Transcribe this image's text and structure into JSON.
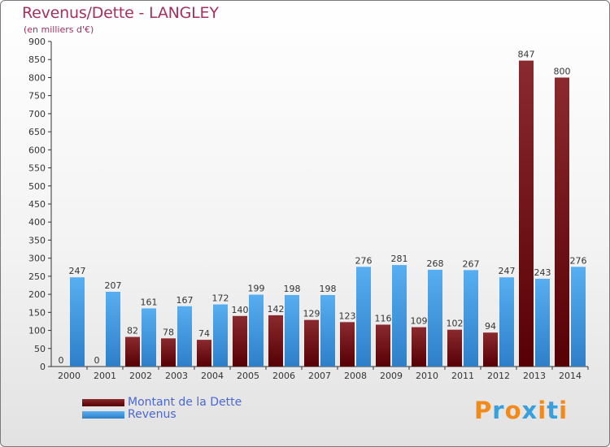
{
  "title": "Revenus/Dette - LANGLEY",
  "subtitle": "(en milliers d'€)",
  "legend": [
    {
      "label": "Montant de la Dette",
      "color": "#6b0f12"
    },
    {
      "label": "Revenus",
      "color": "#3f95de"
    }
  ],
  "logo": {
    "text": "Proxiti",
    "letters": [
      "P",
      "r",
      "o",
      "x",
      "i",
      "t",
      "i"
    ],
    "colors": [
      "#f08a1c",
      "#3aa0dc",
      "#f08a1c",
      "#3aa0dc",
      "#f08a1c",
      "#3aa0dc",
      "#f08a1c"
    ]
  },
  "chart_data": {
    "type": "bar",
    "categories": [
      "2000",
      "2001",
      "2002",
      "2003",
      "2004",
      "2005",
      "2006",
      "2007",
      "2008",
      "2009",
      "2010",
      "2011",
      "2012",
      "2013",
      "2014"
    ],
    "series": [
      {
        "name": "Montant de la Dette",
        "color": "#6b0f12",
        "values": [
          0,
          0,
          82,
          78,
          74,
          140,
          142,
          129,
          123,
          116,
          109,
          102,
          94,
          847,
          800
        ]
      },
      {
        "name": "Revenus",
        "color": "#3f95de",
        "values": [
          247,
          207,
          161,
          167,
          172,
          199,
          198,
          198,
          276,
          281,
          268,
          267,
          247,
          243,
          276
        ]
      }
    ],
    "yticks": [
      0,
      50,
      100,
      150,
      200,
      250,
      300,
      350,
      400,
      450,
      500,
      550,
      600,
      650,
      700,
      750,
      800,
      850,
      900
    ],
    "ylim": [
      0,
      900
    ],
    "grid": false,
    "legend_position": "bottom-left"
  }
}
